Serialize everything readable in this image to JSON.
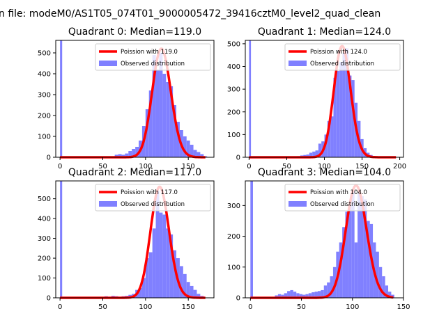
{
  "figure": {
    "suptitle": "n file: modeM0/AS1T05_074T01_9000005472_39416cztM0_level2_quad_clean"
  },
  "chart_data": [
    {
      "type": "bar",
      "title": "Quadrant 0: Median=119.0",
      "xlim": [
        -5,
        180
      ],
      "ylim": [
        0,
        560
      ],
      "xticks": [
        0,
        50,
        100,
        150
      ],
      "yticks": [
        0,
        100,
        200,
        300,
        400,
        500
      ],
      "grid": false,
      "legend": {
        "placement": "top-right",
        "entries": [
          "Poission with 119.0",
          "Observed distribution"
        ]
      },
      "series": [
        {
          "name": "Poission with 119.0",
          "kind": "line",
          "color": "#ff0000",
          "mean": 119.0,
          "peak": 520
        },
        {
          "name": "Observed distribution",
          "kind": "hist",
          "color": "#8080ff",
          "bin_width": 4,
          "bins": [
            [
              0,
              560
            ],
            [
              60,
              5
            ],
            [
              64,
              12
            ],
            [
              68,
              15
            ],
            [
              72,
              12
            ],
            [
              76,
              18
            ],
            [
              80,
              30
            ],
            [
              84,
              40
            ],
            [
              88,
              50
            ],
            [
              92,
              80
            ],
            [
              96,
              150
            ],
            [
              100,
              230
            ],
            [
              104,
              320
            ],
            [
              108,
              490
            ],
            [
              112,
              420
            ],
            [
              116,
              500
            ],
            [
              120,
              400
            ],
            [
              124,
              360
            ],
            [
              128,
              340
            ],
            [
              132,
              250
            ],
            [
              136,
              170
            ],
            [
              140,
              130
            ],
            [
              144,
              100
            ],
            [
              148,
              80
            ],
            [
              152,
              60
            ],
            [
              156,
              35
            ],
            [
              160,
              25
            ],
            [
              164,
              15
            ],
            [
              168,
              5
            ]
          ]
        }
      ]
    },
    {
      "type": "bar",
      "title": "Quadrant 1: Median=124.0",
      "xlim": [
        -5,
        205
      ],
      "ylim": [
        0,
        515
      ],
      "xticks": [
        0,
        50,
        100,
        150,
        200
      ],
      "yticks": [
        0,
        100,
        200,
        300,
        400,
        500
      ],
      "grid": false,
      "legend": {
        "placement": "top-right",
        "entries": [
          "Poission with 124.0",
          "Observed distribution"
        ]
      },
      "series": [
        {
          "name": "Poission with 124.0",
          "kind": "line",
          "color": "#ff0000",
          "mean": 124.0,
          "peak": 490
        },
        {
          "name": "Observed distribution",
          "kind": "hist",
          "color": "#8080ff",
          "bin_width": 4,
          "bins": [
            [
              0,
              515
            ],
            [
              64,
              5
            ],
            [
              68,
              8
            ],
            [
              72,
              10
            ],
            [
              76,
              12
            ],
            [
              80,
              20
            ],
            [
              84,
              25
            ],
            [
              88,
              30
            ],
            [
              92,
              60
            ],
            [
              96,
              70
            ],
            [
              100,
              100
            ],
            [
              104,
              160
            ],
            [
              108,
              180
            ],
            [
              112,
              350
            ],
            [
              116,
              380
            ],
            [
              120,
              420
            ],
            [
              124,
              460
            ],
            [
              128,
              480
            ],
            [
              132,
              360
            ],
            [
              136,
              340
            ],
            [
              140,
              240
            ],
            [
              144,
              160
            ],
            [
              148,
              80
            ],
            [
              152,
              40
            ],
            [
              156,
              20
            ],
            [
              160,
              10
            ],
            [
              164,
              5
            ]
          ]
        }
      ]
    },
    {
      "type": "bar",
      "title": "Quadrant 2: Median=117.0",
      "xlim": [
        -5,
        180
      ],
      "ylim": [
        0,
        590
      ],
      "xticks": [
        0,
        50,
        100,
        150
      ],
      "yticks": [
        0,
        100,
        200,
        300,
        400,
        500
      ],
      "grid": false,
      "legend": {
        "placement": "top-right",
        "entries": [
          "Poission with 117.0",
          "Observed distribution"
        ]
      },
      "series": [
        {
          "name": "Poission with 117.0",
          "kind": "line",
          "color": "#ff0000",
          "mean": 117.0,
          "peak": 560
        },
        {
          "name": "Observed distribution",
          "kind": "hist",
          "color": "#8080ff",
          "bin_width": 4,
          "bins": [
            [
              0,
              590
            ],
            [
              48,
              5
            ],
            [
              52,
              8
            ],
            [
              56,
              5
            ],
            [
              60,
              10
            ],
            [
              64,
              8
            ],
            [
              68,
              5
            ],
            [
              72,
              8
            ],
            [
              76,
              10
            ],
            [
              80,
              15
            ],
            [
              84,
              20
            ],
            [
              88,
              40
            ],
            [
              92,
              50
            ],
            [
              96,
              100
            ],
            [
              100,
              200
            ],
            [
              104,
              230
            ],
            [
              108,
              350
            ],
            [
              112,
              540
            ],
            [
              116,
              430
            ],
            [
              120,
              420
            ],
            [
              124,
              350
            ],
            [
              128,
              320
            ],
            [
              132,
              240
            ],
            [
              136,
              200
            ],
            [
              140,
              160
            ],
            [
              144,
              120
            ],
            [
              148,
              80
            ],
            [
              152,
              60
            ],
            [
              156,
              40
            ],
            [
              160,
              20
            ],
            [
              164,
              10
            ]
          ]
        }
      ]
    },
    {
      "type": "bar",
      "title": "Quadrant 3: Median=104.0",
      "xlim": [
        -5,
        150
      ],
      "ylim": [
        0,
        380
      ],
      "xticks": [
        0,
        50,
        100,
        150
      ],
      "yticks": [
        0,
        100,
        200,
        300
      ],
      "grid": false,
      "legend": {
        "placement": "top-right",
        "entries": [
          "Poission with 104.0",
          "Observed distribution"
        ]
      },
      "series": [
        {
          "name": "Poission with 104.0",
          "kind": "line",
          "color": "#ff0000",
          "mean": 104.0,
          "peak": 365
        },
        {
          "name": "Observed distribution",
          "kind": "hist",
          "color": "#8080ff",
          "bin_width": 3,
          "bins": [
            [
              0,
              380
            ],
            [
              24,
              8
            ],
            [
              27,
              12
            ],
            [
              30,
              10
            ],
            [
              33,
              15
            ],
            [
              36,
              22
            ],
            [
              39,
              25
            ],
            [
              42,
              20
            ],
            [
              45,
              15
            ],
            [
              48,
              12
            ],
            [
              51,
              10
            ],
            [
              54,
              12
            ],
            [
              57,
              15
            ],
            [
              60,
              18
            ],
            [
              63,
              20
            ],
            [
              66,
              22
            ],
            [
              69,
              25
            ],
            [
              72,
              40
            ],
            [
              75,
              50
            ],
            [
              78,
              70
            ],
            [
              81,
              100
            ],
            [
              84,
              150
            ],
            [
              87,
              180
            ],
            [
              90,
              230
            ],
            [
              93,
              280
            ],
            [
              96,
              300
            ],
            [
              99,
              350
            ],
            [
              102,
              180
            ],
            [
              105,
              340
            ],
            [
              108,
              330
            ],
            [
              111,
              320
            ],
            [
              114,
              250
            ],
            [
              117,
              240
            ],
            [
              120,
              180
            ],
            [
              123,
              150
            ],
            [
              126,
              100
            ],
            [
              129,
              70
            ],
            [
              132,
              40
            ],
            [
              135,
              20
            ],
            [
              138,
              10
            ]
          ]
        }
      ]
    }
  ]
}
